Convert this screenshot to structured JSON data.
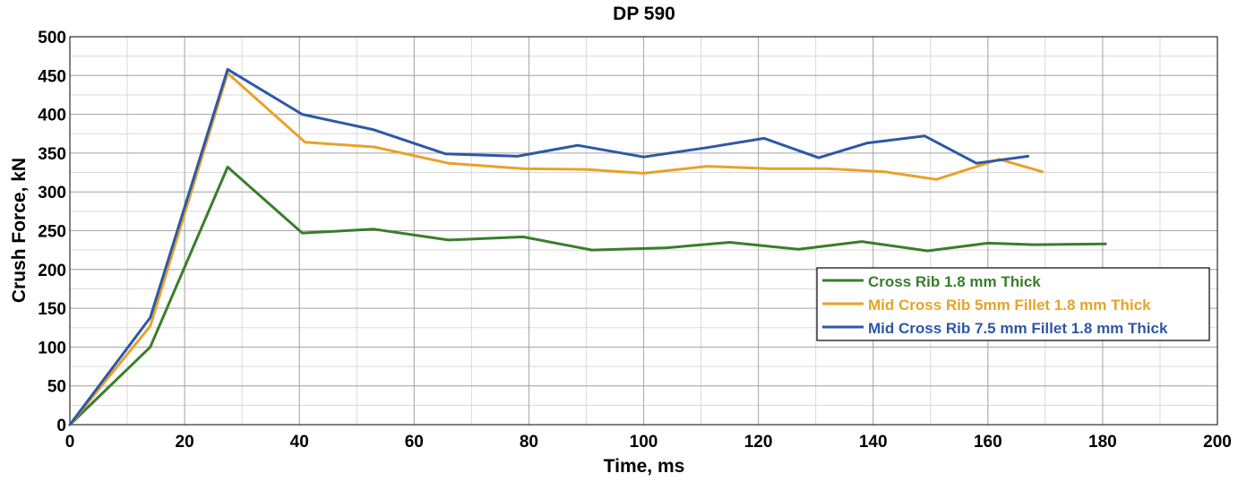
{
  "chart_data": {
    "type": "line",
    "title": "DP 590",
    "xlabel": "Time, ms",
    "ylabel": "Crush Force, kN",
    "xlim": [
      0,
      200
    ],
    "ylim": [
      0,
      500
    ],
    "x_ticks": [
      0,
      20,
      40,
      60,
      80,
      100,
      120,
      140,
      160,
      180,
      200
    ],
    "y_ticks": [
      0,
      50,
      100,
      150,
      200,
      250,
      300,
      350,
      400,
      450,
      500
    ],
    "grid": true,
    "legend_position": "center-right",
    "series": [
      {
        "name": "Cross Rib 1.8 mm Thick",
        "color": "#3a7d2c",
        "x": [
          0,
          14,
          27.5,
          40.5,
          53,
          66,
          79,
          91,
          104,
          115,
          127,
          138,
          149.5,
          160,
          168,
          180.5
        ],
        "values": [
          0,
          100,
          332,
          247,
          252,
          238,
          242,
          225,
          228,
          235,
          226,
          236,
          224,
          234,
          232,
          233
        ]
      },
      {
        "name": "Mid Cross Rib 5mm Fillet 1.8 mm Thick",
        "color": "#e8a229",
        "x": [
          0,
          14,
          27.5,
          41,
          53,
          66,
          79,
          90,
          100,
          111,
          122,
          132,
          142,
          151,
          162,
          169.5
        ],
        "values": [
          0,
          127,
          453,
          364,
          358,
          337,
          330,
          329,
          324,
          333,
          330,
          330,
          326,
          316,
          342,
          326
        ]
      },
      {
        "name": "Mid Cross Rib 7.5 mm Fillet 1.8 mm Thick",
        "color": "#2d58a6",
        "x": [
          0,
          14,
          27.5,
          40.5,
          53,
          65.5,
          78,
          88.5,
          100,
          111,
          121,
          130.5,
          139,
          149,
          158,
          167
        ],
        "values": [
          0,
          138,
          458,
          400,
          380,
          349,
          346,
          360,
          345,
          357,
          369,
          344,
          363,
          372,
          337,
          346
        ]
      }
    ]
  }
}
